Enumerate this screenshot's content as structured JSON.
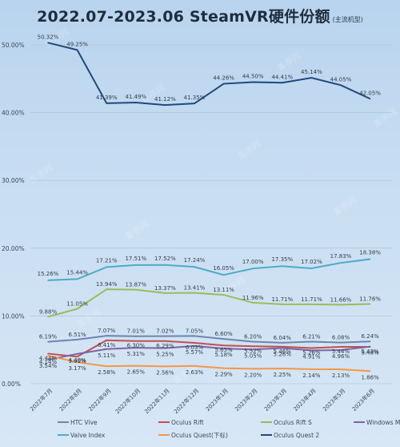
{
  "title": "2022.07-2023.06 SteamVR硬件份额",
  "subtitle": "(主流机型)",
  "watermark": "青亭网",
  "chart_data": {
    "type": "line",
    "title": "2022.07-2023.06 SteamVR硬件份额",
    "subtitle": "(主流机型)",
    "categories": [
      "2022年7月",
      "2022年8月",
      "2022年9月",
      "2022年10月",
      "2022年11月",
      "2022年12月",
      "2023年1月",
      "2023年2月",
      "2023年3月",
      "2023年4月",
      "2023年5月",
      "2023年6月"
    ],
    "yticks": [
      "0.00%",
      "10.00%",
      "20.00%",
      "30.00%",
      "40.00%",
      "50.00%"
    ],
    "ylim": [
      0,
      50
    ],
    "grid": true,
    "legend_position": "bottom",
    "series": [
      {
        "name": "HTC Vive",
        "color": "#6b87b0",
        "values": [
          6.19,
          6.51,
          7.07,
          7.01,
          7.02,
          7.05,
          6.6,
          6.2,
          6.04,
          6.21,
          6.08,
          6.24
        ],
        "labels": [
          "6.19%",
          "6.51%",
          "7.07%",
          "7.01%",
          "7.02%",
          "7.05%",
          "6.60%",
          "6.20%",
          "6.04%",
          "6.21%",
          "6.08%",
          "6.24%"
        ]
      },
      {
        "name": "Oculus Rift",
        "color": "#c0504d",
        "values": [
          4.44,
          3.99,
          6.41,
          6.3,
          6.29,
          6.03,
          5.65,
          5.52,
          5.46,
          5.26,
          5.44,
          5.43
        ],
        "labels": [
          "4.44%",
          "3.99%",
          "6.41%",
          "6.30%",
          "6.29%",
          "6.03%",
          "5.65%",
          "5.52%",
          "5.46%",
          "5.26%",
          "5.44%",
          "5.43%"
        ]
      },
      {
        "name": "Oculus Rift S",
        "color": "#9bbb59",
        "values": [
          9.88,
          11.05,
          13.94,
          13.87,
          13.37,
          13.41,
          13.11,
          11.96,
          11.71,
          11.71,
          11.66,
          11.76
        ],
        "labels": [
          "9.88%",
          "11.05%",
          "13.94%",
          "13.87%",
          "13.37%",
          "13.41%",
          "13.11%",
          "11.96%",
          "11.71%",
          "11.71%",
          "11.66%",
          "11.76%"
        ]
      },
      {
        "name": "Windows MR(下标)",
        "color": "#8064a2",
        "values": [
          3.54,
          4.4,
          5.11,
          5.31,
          5.25,
          5.57,
          5.18,
          5.05,
          5.26,
          4.91,
          4.96,
          5.48
        ],
        "labels": [
          "3.54%",
          "4.40%",
          "5.11%",
          "5.31%",
          "5.25%",
          "5.57%",
          "5.18%",
          "5.05%",
          "5.26%",
          "4.91%",
          "4.96%",
          "5.48%"
        ]
      },
      {
        "name": "Valve Index",
        "color": "#4bacc6",
        "values": [
          15.26,
          15.44,
          17.21,
          17.51,
          17.52,
          17.24,
          16.05,
          17.0,
          17.35,
          17.02,
          17.83,
          18.38
        ],
        "labels": [
          "15.26%",
          "15.44%",
          "17.21%",
          "17.51%",
          "17.52%",
          "17.24%",
          "16.05%",
          "17.00%",
          "17.35%",
          "17.02%",
          "17.83%",
          "18.38%"
        ]
      },
      {
        "name": "Oculus Quest(下标)",
        "color": "#f79646",
        "values": [
          4.14,
          3.17,
          2.58,
          2.65,
          2.56,
          2.63,
          2.29,
          2.2,
          2.25,
          2.14,
          2.13,
          1.86
        ],
        "labels": [
          "4.14%",
          "3.17%",
          "2.58%",
          "2.65%",
          "2.56%",
          "2.63%",
          "2.29%",
          "2.20%",
          "2.25%",
          "2.14%",
          "2.13%",
          "1.86%"
        ]
      },
      {
        "name": "Oculus Quest 2",
        "color": "#1f497d",
        "values": [
          50.32,
          49.25,
          41.39,
          41.49,
          41.12,
          41.35,
          44.26,
          44.5,
          44.41,
          45.14,
          44.05,
          42.05
        ],
        "labels": [
          "50.32%",
          "49.25%",
          "41.39%",
          "41.49%",
          "41.12%",
          "41.35%",
          "44.26%",
          "44.50%",
          "44.41%",
          "45.14%",
          "44.05%",
          "42.05%"
        ]
      }
    ]
  }
}
